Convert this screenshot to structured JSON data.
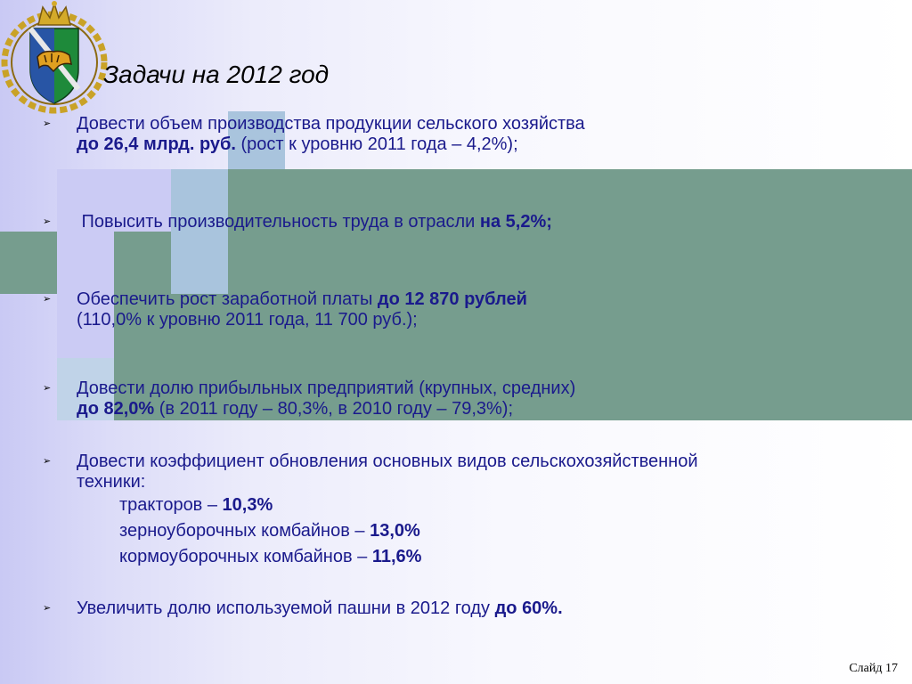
{
  "title": "Задачи на 2012 год",
  "bullet_glyph": "➢",
  "emblem_icon": "primorsky-krai-coat-of-arms-icon",
  "colors": {
    "text": "#1a1a8c",
    "deco_teal": "#769d8e",
    "deco_lavender": "#c9c9f4",
    "deco_lightblue": "#a8c4de"
  },
  "tasks": [
    {
      "line1": "Довести объем производства продукции сельского хозяйства",
      "line2_bold": "до 26,4 млрд. руб.",
      "line2_rest": " (рост к уровню 2011 года – 4,2%);"
    },
    {
      "text": " Повысить производительность труда в отрасли ",
      "bold": "на 5,2%;"
    },
    {
      "line1_text": "Обеспечить рост заработной платы ",
      "line1_bold": "до 12 870 рублей",
      "line2": "(110,0% к уровню 2011 года, 11 700 руб.);"
    },
    {
      "line1": "Довести долю прибыльных предприятий (крупных, средних)",
      "line2_bold": "до 82,0%",
      "line2_rest": " (в 2011 году – 80,3%, в 2010 году – 79,3%);"
    },
    {
      "line1": "Довести коэффициент обновления основных видов сельскохозяйственной",
      "line2": "техники:",
      "subitems": [
        {
          "label": "тракторов – ",
          "value": "10,3%"
        },
        {
          "label": "зерноуборочных комбайнов – ",
          "value": "13,0%"
        },
        {
          "label": "кормоуборочных комбайнов – ",
          "value": "11,6%"
        }
      ]
    },
    {
      "text": "Увеличить долю используемой пашни в 2012 году ",
      "bold": "до 60%."
    }
  ],
  "slide_number": "Слайд 17"
}
